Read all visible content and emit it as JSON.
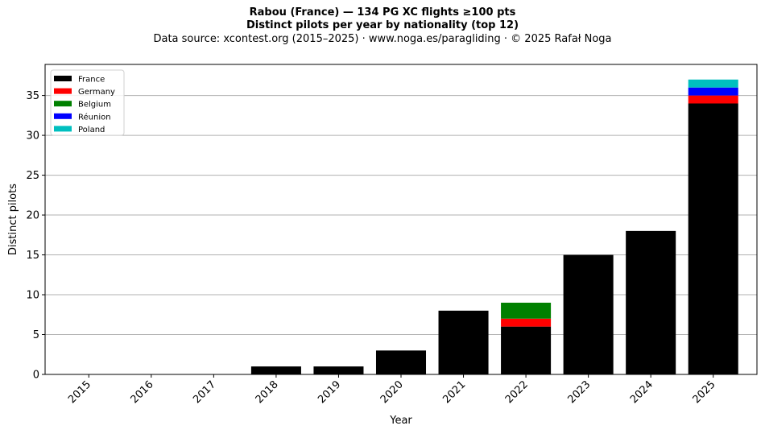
{
  "header": {
    "title_line1": "Rabou (France)  —  134 PG XC flights ≥100 pts",
    "title_line2": "Distinct pilots per year by nationality (top 12)",
    "subtitle": "Data source: xcontest.org (2015–2025)  ·  www.noga.es/paragliding  ·  © 2025 Rafał Noga"
  },
  "chart_data": {
    "type": "bar",
    "stacked": true,
    "xlabel": "Year",
    "ylabel": "Distinct pilots",
    "ylim": [
      0,
      38.9
    ],
    "yticks": [
      0,
      5,
      10,
      15,
      20,
      25,
      30,
      35
    ],
    "grid": "y",
    "legend_position": "top-left",
    "categories": [
      "2015",
      "2016",
      "2017",
      "2018",
      "2019",
      "2020",
      "2021",
      "2022",
      "2023",
      "2024",
      "2025"
    ],
    "series": [
      {
        "name": "France",
        "color": "#000000",
        "values": [
          0,
          0,
          0,
          1,
          1,
          3,
          8,
          6,
          15,
          18,
          34
        ]
      },
      {
        "name": "Germany",
        "color": "#ff0000",
        "values": [
          0,
          0,
          0,
          0,
          0,
          0,
          0,
          1,
          0,
          0,
          1
        ]
      },
      {
        "name": "Belgium",
        "color": "#008000",
        "values": [
          0,
          0,
          0,
          0,
          0,
          0,
          0,
          2,
          0,
          0,
          0
        ]
      },
      {
        "name": "Réunion",
        "color": "#0000ff",
        "values": [
          0,
          0,
          0,
          0,
          0,
          0,
          0,
          0,
          0,
          0,
          1
        ]
      },
      {
        "name": "Poland",
        "color": "#00bfbf",
        "values": [
          0,
          0,
          0,
          0,
          0,
          0,
          0,
          0,
          0,
          0,
          1
        ]
      }
    ]
  }
}
